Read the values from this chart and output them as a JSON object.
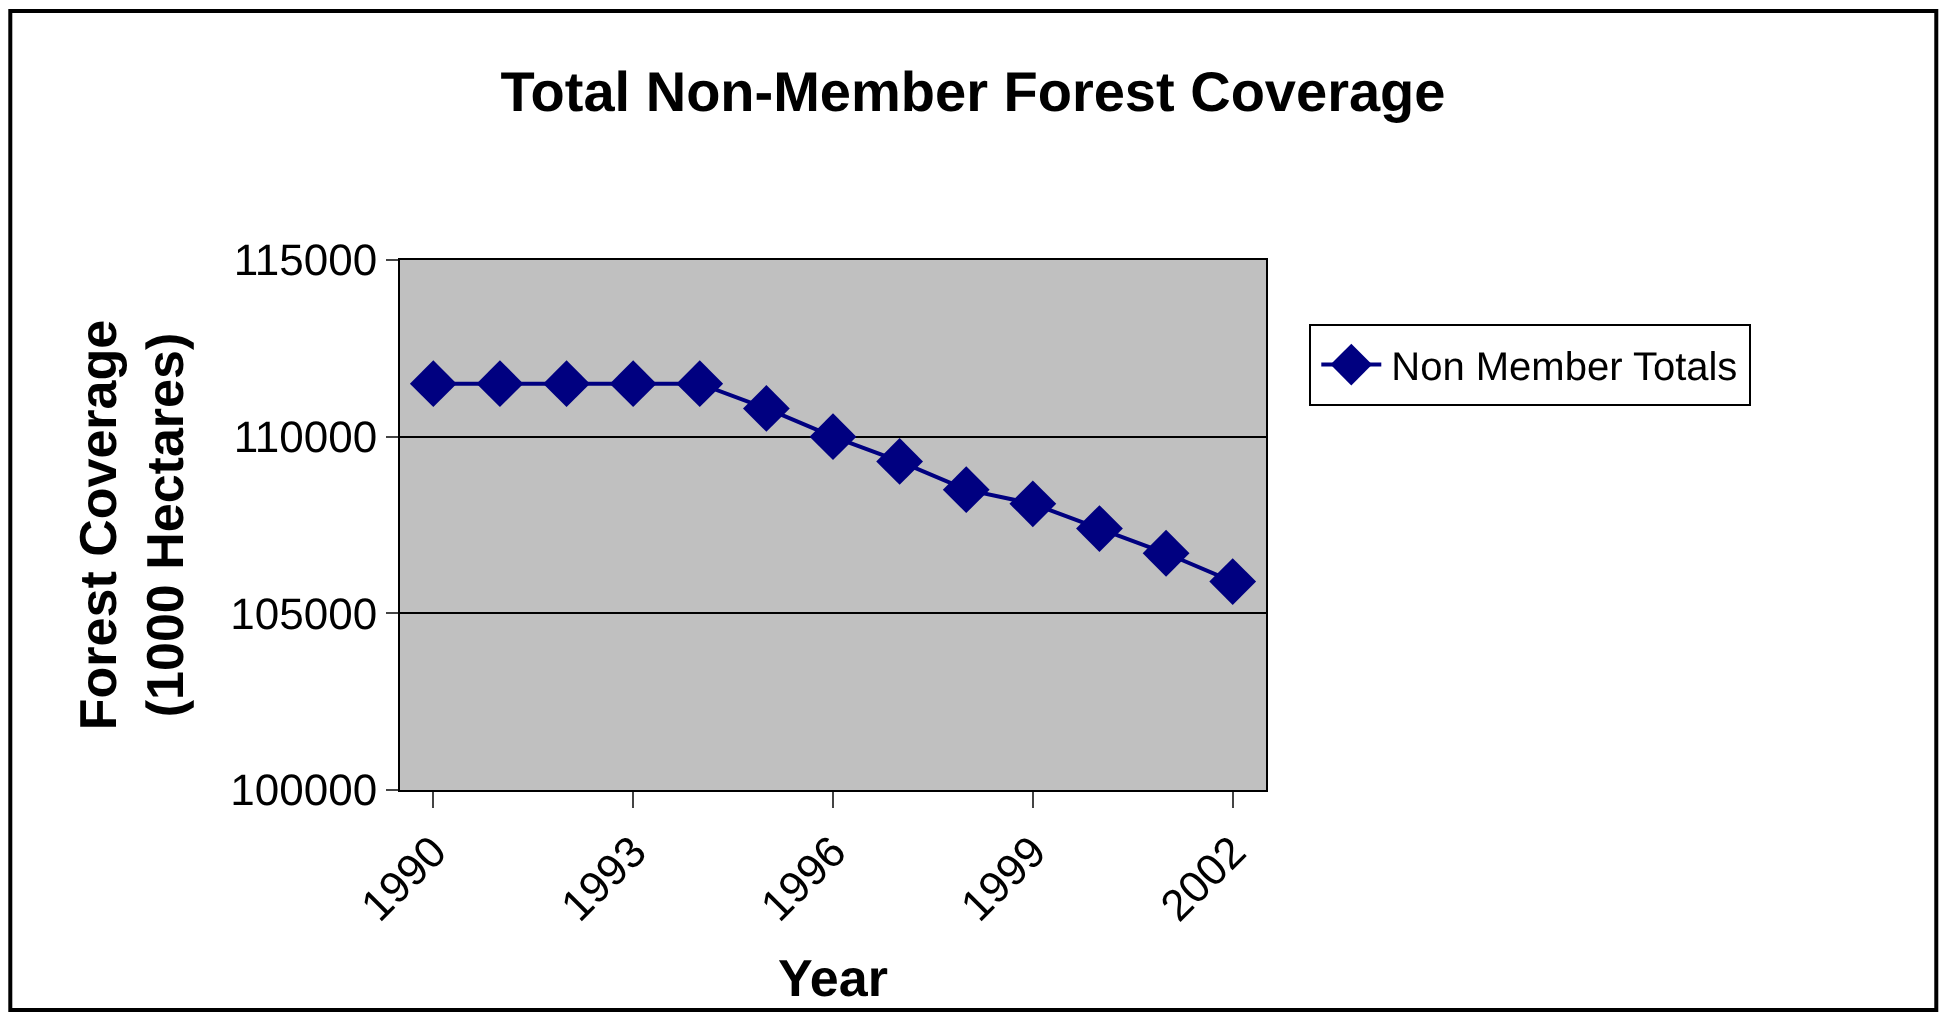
{
  "chart_data": {
    "type": "line",
    "title": "Total Non-Member Forest Coverage",
    "xlabel": "Year",
    "ylabel": "Forest Coverage\n(1000 Hectares)",
    "categories": [
      "1990",
      null,
      null,
      "1993",
      null,
      null,
      "1996",
      null,
      null,
      "1999",
      null,
      null,
      "2002"
    ],
    "series": [
      {
        "name": "Non Member Totals",
        "color": "#000080",
        "values": [
          111500,
          111500,
          111500,
          111500,
          111500,
          110800,
          110000,
          109300,
          108500,
          108100,
          107400,
          106700,
          105900
        ]
      }
    ],
    "ylim": [
      100000,
      115000
    ],
    "yticks": [
      100000,
      105000,
      110000,
      115000
    ],
    "grid": "y",
    "legend": "right",
    "marker": "diamond"
  }
}
